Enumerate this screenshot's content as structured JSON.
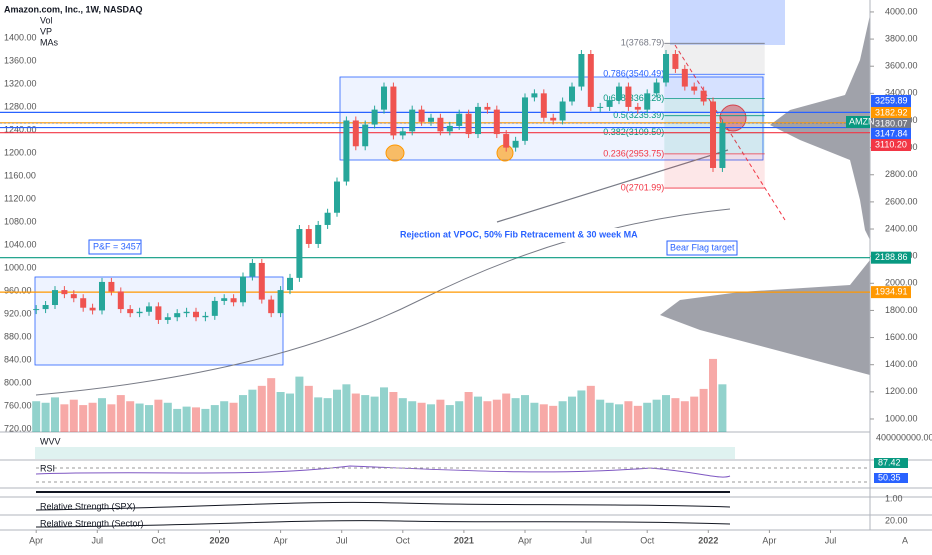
{
  "header": {
    "title": "Amazon.com, Inc., 1W, NASDAQ",
    "indicators": [
      "Vol",
      "VP",
      "MAs"
    ]
  },
  "chart_data": {
    "type": "candlestick",
    "close": [
      1810,
      1840,
      1950,
      1920,
      1890,
      1820,
      1800,
      2010,
      1940,
      1810,
      1780,
      1790,
      1830,
      1730,
      1750,
      1780,
      1790,
      1750,
      1760,
      1870,
      1890,
      1860,
      2050,
      2150,
      1880,
      1780,
      1950,
      2040,
      2400,
      2290,
      2430,
      2520,
      2750,
      3200,
      3010,
      3170,
      3280,
      3450,
      3090,
      3120,
      3280,
      3190,
      3220,
      3120,
      3160,
      3250,
      3100,
      3300,
      3280,
      3100,
      3000,
      3050,
      3370,
      3400,
      3220,
      3200,
      3340,
      3450,
      3690,
      3300,
      3300,
      3350,
      3450,
      3300,
      3280,
      3400,
      3480,
      3690,
      3580,
      3450,
      3420,
      3340,
      2850,
      3180
    ],
    "volume": [
      40,
      38,
      45,
      36,
      42,
      35,
      38,
      44,
      36,
      48,
      40,
      37,
      35,
      42,
      38,
      30,
      33,
      32,
      30,
      35,
      40,
      38,
      48,
      55,
      60,
      70,
      52,
      50,
      72,
      60,
      45,
      44,
      55,
      62,
      50,
      48,
      46,
      58,
      52,
      44,
      40,
      38,
      36,
      42,
      35,
      40,
      52,
      46,
      40,
      42,
      50,
      44,
      48,
      38,
      36,
      34,
      40,
      46,
      54,
      60,
      42,
      38,
      36,
      40,
      34,
      38,
      42,
      48,
      44,
      40,
      46,
      56,
      95,
      62
    ],
    "up_color": "#26a69a",
    "down_color": "#ef5350",
    "ylim": [
      904,
      4088
    ],
    "yticks": [
      {
        "value": 4000,
        "label": "4000.00"
      },
      {
        "value": 3800,
        "label": "3800.00"
      },
      {
        "value": 3600,
        "label": "3600.00"
      },
      {
        "value": 3400,
        "label": "3400.00"
      },
      {
        "value": 3200,
        "label": "3200.00"
      },
      {
        "value": 3000,
        "label": "3000.00"
      },
      {
        "value": 2800,
        "label": "2800.00"
      },
      {
        "value": 2600,
        "label": "2600.00"
      },
      {
        "value": 2400,
        "label": "2400.00"
      },
      {
        "value": 2200,
        "label": "2200.00"
      },
      {
        "value": 2000,
        "label": "2000.00"
      },
      {
        "value": 1800,
        "label": "1800.00"
      },
      {
        "value": 1600,
        "label": "1600.00"
      },
      {
        "value": 1400,
        "label": "1400.00"
      },
      {
        "value": 1200,
        "label": "1200.00"
      },
      {
        "value": 1000,
        "label": "1000.00"
      }
    ],
    "y2lim": [
      715,
      1466
    ],
    "y2ticks": [
      {
        "value": 1400,
        "label": "1400.00"
      },
      {
        "value": 1360,
        "label": "1360.00"
      },
      {
        "value": 1320,
        "label": "1320.00"
      },
      {
        "value": 1280,
        "label": "1280.00"
      },
      {
        "value": 1240,
        "label": "1240.00"
      },
      {
        "value": 1200,
        "label": "1200.00"
      },
      {
        "value": 1160,
        "label": "1160.00"
      },
      {
        "value": 1120,
        "label": "1120.00"
      },
      {
        "value": 1080,
        "label": "1080.00"
      },
      {
        "value": 1040,
        "label": "1040.00"
      },
      {
        "value": 1000,
        "label": "1000.00"
      },
      {
        "value": 960,
        "label": "960.00"
      },
      {
        "value": 920,
        "label": "920.00"
      },
      {
        "value": 880,
        "label": "880.00"
      },
      {
        "value": 840,
        "label": "840.00"
      },
      {
        "value": 800,
        "label": "800.00"
      },
      {
        "value": 760,
        "label": "760.00"
      },
      {
        "value": 720,
        "label": "720.00"
      }
    ],
    "xlim": [
      -7.7,
      177.4
    ],
    "xticks": [
      {
        "value": 0,
        "label": "Apr"
      },
      {
        "value": 13,
        "label": "Jul"
      },
      {
        "value": 26,
        "label": "Oct"
      },
      {
        "value": 39,
        "label": "2020"
      },
      {
        "value": 52,
        "label": "Apr"
      },
      {
        "value": 65,
        "label": "Jul"
      },
      {
        "value": 78,
        "label": "Oct"
      },
      {
        "value": 91,
        "label": "2021"
      },
      {
        "value": 104,
        "label": "Apr"
      },
      {
        "value": 117,
        "label": "Jul"
      },
      {
        "value": 130,
        "label": "Oct"
      },
      {
        "value": 143,
        "label": "2022"
      },
      {
        "value": 156,
        "label": "Apr"
      },
      {
        "value": 169,
        "label": "Jul"
      }
    ],
    "levels": [
      {
        "value": 3259.89,
        "label": "3259.89",
        "color": "#2962ff"
      },
      {
        "value": 3182.92,
        "label": "3182.92",
        "color": "#ff9800"
      },
      {
        "value": 3180.07,
        "label": "3180.07",
        "color": "#787b86"
      },
      {
        "value": 3147.84,
        "label": "3147.84",
        "color": "#2962ff"
      },
      {
        "value": 3110.2,
        "label": "3110.20",
        "color": "#f23645"
      },
      {
        "value": 2188.86,
        "label": "2188.86",
        "color": "#089981"
      },
      {
        "value": 1934.91,
        "label": "1934.91",
        "color": "#ff9800"
      }
    ],
    "fib": [
      {
        "value": 3768.79,
        "label": "1(3768.79)"
      },
      {
        "value": 3540.49,
        "label": "0.786(3540.49)"
      },
      {
        "value": 3361.28,
        "label": "0.618(3361.28)"
      },
      {
        "value": 3235.39,
        "label": "0.5(3235.39)"
      },
      {
        "value": 3109.5,
        "label": "0.382(3109.50)"
      },
      {
        "value": 2953.75,
        "label": "0.236(2953.75)"
      },
      {
        "value": 2701.99,
        "label": "0(2701.99)"
      }
    ],
    "annotations": [
      "Rejection at VPOC, 50% Fib Retracement & 30 week MA",
      "P&F = 3457",
      "Bear Flag target"
    ],
    "symbol_tag": "AMZN"
  },
  "panes": [
    {
      "label": "WVV",
      "value": "400000000.00"
    },
    {
      "label": "RSI",
      "values": [
        "87.42",
        "50.35"
      ]
    },
    {
      "value": "1.00"
    },
    {
      "label": "Relative Strength (SPX)"
    },
    {
      "label": "Relative Strength (Sector)",
      "value": "20.00"
    }
  ],
  "corner": "A"
}
